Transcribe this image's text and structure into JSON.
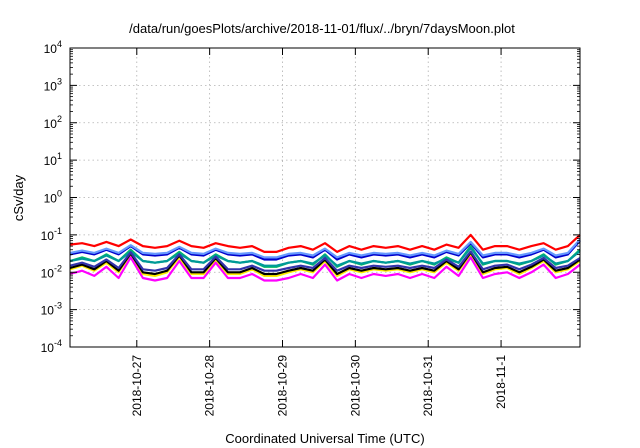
{
  "chart_data": {
    "type": "line",
    "title": "/data/run/goesPlots/archive/2018-11-01/flux/../bryn/7daysMoon.plot",
    "xlabel": "Coordinated Universal Time (UTC)",
    "ylabel": "cSv/day",
    "yscale": "log",
    "ylim": [
      0.0001,
      10000
    ],
    "xlim": [
      "2018-10-26 02:00",
      "2018-11-02 02:00"
    ],
    "grid": true,
    "legend": "none",
    "x_ticks": [
      "2018-10-27",
      "2018-10-28",
      "2018-10-29",
      "2018-10-30",
      "2018-10-31",
      "2018-11-1"
    ],
    "y_ticks": [
      {
        "base": "10",
        "exp": "-4",
        "value": 0.0001
      },
      {
        "base": "10",
        "exp": "-3",
        "value": 0.001
      },
      {
        "base": "10",
        "exp": "-2",
        "value": 0.01
      },
      {
        "base": "10",
        "exp": "-1",
        "value": 0.1
      },
      {
        "base": "10",
        "exp": "0",
        "value": 1
      },
      {
        "base": "10",
        "exp": "1",
        "value": 10
      },
      {
        "base": "10",
        "exp": "2",
        "value": 100
      },
      {
        "base": "10",
        "exp": "3",
        "value": 1000
      },
      {
        "base": "10",
        "exp": "4",
        "value": 10000
      }
    ],
    "x": [
      "2018-10-26 02:00",
      "2018-10-26 06:00",
      "2018-10-26 10:00",
      "2018-10-26 14:00",
      "2018-10-26 18:00",
      "2018-10-26 22:00",
      "2018-10-27 02:00",
      "2018-10-27 06:00",
      "2018-10-27 10:00",
      "2018-10-27 14:00",
      "2018-10-27 18:00",
      "2018-10-27 22:00",
      "2018-10-28 02:00",
      "2018-10-28 06:00",
      "2018-10-28 10:00",
      "2018-10-28 14:00",
      "2018-10-28 18:00",
      "2018-10-28 22:00",
      "2018-10-29 02:00",
      "2018-10-29 06:00",
      "2018-10-29 10:00",
      "2018-10-29 14:00",
      "2018-10-29 18:00",
      "2018-10-29 22:00",
      "2018-10-30 02:00",
      "2018-10-30 06:00",
      "2018-10-30 10:00",
      "2018-10-30 14:00",
      "2018-10-30 18:00",
      "2018-10-30 22:00",
      "2018-10-31 02:00",
      "2018-10-31 06:00",
      "2018-10-31 10:00",
      "2018-10-31 14:00",
      "2018-10-31 18:00",
      "2018-10-31 22:00",
      "2018-11-01 02:00",
      "2018-11-01 06:00",
      "2018-11-01 10:00",
      "2018-11-01 14:00",
      "2018-11-01 18:00",
      "2018-11-01 22:00",
      "2018-11-02 02:00"
    ],
    "series": [
      {
        "color": "#ff0000",
        "values": [
          0.055,
          0.06,
          0.05,
          0.065,
          0.05,
          0.075,
          0.05,
          0.045,
          0.05,
          0.07,
          0.05,
          0.045,
          0.06,
          0.05,
          0.045,
          0.05,
          0.035,
          0.035,
          0.045,
          0.05,
          0.04,
          0.06,
          0.035,
          0.05,
          0.04,
          0.05,
          0.045,
          0.05,
          0.04,
          0.05,
          0.04,
          0.055,
          0.045,
          0.1,
          0.04,
          0.05,
          0.05,
          0.04,
          0.05,
          0.06,
          0.04,
          0.05,
          0.1
        ]
      },
      {
        "color": "#0000cc",
        "values": [
          0.03,
          0.035,
          0.03,
          0.04,
          0.03,
          0.05,
          0.03,
          0.028,
          0.03,
          0.045,
          0.03,
          0.028,
          0.04,
          0.03,
          0.028,
          0.03,
          0.022,
          0.022,
          0.028,
          0.03,
          0.025,
          0.04,
          0.022,
          0.03,
          0.025,
          0.03,
          0.028,
          0.03,
          0.025,
          0.03,
          0.025,
          0.035,
          0.028,
          0.06,
          0.025,
          0.03,
          0.03,
          0.025,
          0.03,
          0.04,
          0.025,
          0.03,
          0.07
        ]
      },
      {
        "color": "#6699ff",
        "values": [
          0.033,
          0.038,
          0.033,
          0.043,
          0.033,
          0.053,
          0.033,
          0.031,
          0.033,
          0.048,
          0.033,
          0.031,
          0.043,
          0.033,
          0.031,
          0.033,
          0.025,
          0.025,
          0.031,
          0.033,
          0.028,
          0.043,
          0.025,
          0.033,
          0.028,
          0.033,
          0.031,
          0.033,
          0.028,
          0.033,
          0.028,
          0.038,
          0.031,
          0.065,
          0.028,
          0.033,
          0.033,
          0.028,
          0.033,
          0.043,
          0.028,
          0.033,
          0.075
        ]
      },
      {
        "color": "#00bb66",
        "values": [
          0.02,
          0.025,
          0.02,
          0.03,
          0.02,
          0.04,
          0.02,
          0.018,
          0.02,
          0.035,
          0.02,
          0.018,
          0.03,
          0.02,
          0.018,
          0.02,
          0.014,
          0.014,
          0.018,
          0.02,
          0.016,
          0.03,
          0.014,
          0.02,
          0.016,
          0.02,
          0.018,
          0.02,
          0.016,
          0.02,
          0.016,
          0.025,
          0.018,
          0.05,
          0.016,
          0.02,
          0.02,
          0.016,
          0.02,
          0.03,
          0.016,
          0.02,
          0.04
        ]
      },
      {
        "color": "#009999",
        "values": [
          0.02,
          0.023,
          0.02,
          0.028,
          0.02,
          0.036,
          0.02,
          0.018,
          0.02,
          0.032,
          0.02,
          0.018,
          0.028,
          0.02,
          0.018,
          0.02,
          0.015,
          0.015,
          0.018,
          0.02,
          0.017,
          0.028,
          0.015,
          0.02,
          0.017,
          0.02,
          0.018,
          0.02,
          0.017,
          0.02,
          0.017,
          0.023,
          0.018,
          0.045,
          0.017,
          0.02,
          0.02,
          0.017,
          0.02,
          0.028,
          0.017,
          0.02,
          0.037
        ]
      },
      {
        "color": "#ffee00",
        "values": [
          0.012,
          0.015,
          0.011,
          0.018,
          0.01,
          0.03,
          0.009,
          0.008,
          0.01,
          0.025,
          0.009,
          0.009,
          0.022,
          0.009,
          0.009,
          0.012,
          0.008,
          0.008,
          0.01,
          0.012,
          0.01,
          0.02,
          0.008,
          0.012,
          0.01,
          0.012,
          0.011,
          0.012,
          0.01,
          0.012,
          0.01,
          0.018,
          0.011,
          0.03,
          0.009,
          0.012,
          0.013,
          0.009,
          0.013,
          0.02,
          0.01,
          0.012,
          0.02
        ]
      },
      {
        "color": "#000000",
        "values": [
          0.013,
          0.016,
          0.012,
          0.02,
          0.011,
          0.032,
          0.01,
          0.009,
          0.011,
          0.028,
          0.01,
          0.01,
          0.024,
          0.01,
          0.01,
          0.013,
          0.009,
          0.009,
          0.011,
          0.013,
          0.011,
          0.022,
          0.009,
          0.013,
          0.011,
          0.013,
          0.012,
          0.013,
          0.011,
          0.013,
          0.011,
          0.02,
          0.012,
          0.034,
          0.01,
          0.013,
          0.014,
          0.01,
          0.014,
          0.022,
          0.011,
          0.013,
          0.022
        ]
      },
      {
        "color": "#3333aa",
        "values": [
          0.015,
          0.018,
          0.014,
          0.022,
          0.013,
          0.034,
          0.012,
          0.011,
          0.013,
          0.03,
          0.012,
          0.012,
          0.026,
          0.012,
          0.012,
          0.015,
          0.011,
          0.011,
          0.013,
          0.015,
          0.013,
          0.024,
          0.011,
          0.015,
          0.013,
          0.015,
          0.014,
          0.015,
          0.013,
          0.015,
          0.013,
          0.022,
          0.014,
          0.036,
          0.012,
          0.015,
          0.016,
          0.012,
          0.016,
          0.024,
          0.013,
          0.015,
          0.024
        ]
      },
      {
        "color": "#ff00ff",
        "values": [
          0.009,
          0.011,
          0.008,
          0.014,
          0.007,
          0.025,
          0.007,
          0.006,
          0.007,
          0.02,
          0.007,
          0.007,
          0.018,
          0.007,
          0.007,
          0.009,
          0.006,
          0.006,
          0.007,
          0.009,
          0.007,
          0.016,
          0.006,
          0.009,
          0.007,
          0.009,
          0.008,
          0.009,
          0.007,
          0.009,
          0.007,
          0.014,
          0.008,
          0.025,
          0.007,
          0.009,
          0.01,
          0.007,
          0.01,
          0.016,
          0.007,
          0.009,
          0.016
        ]
      }
    ]
  }
}
